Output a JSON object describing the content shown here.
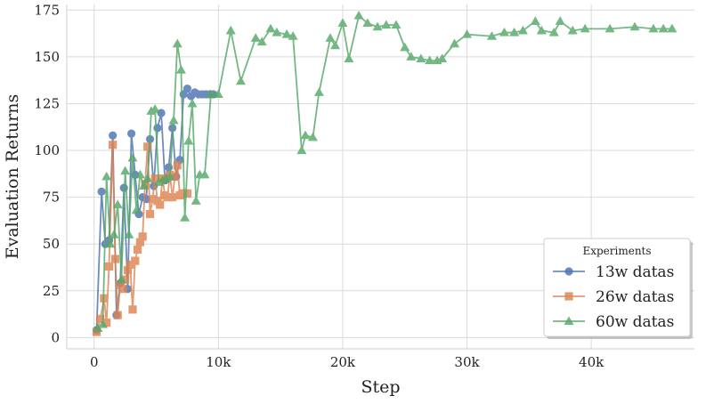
{
  "chart_data": {
    "type": "line",
    "title": "",
    "xlabel": "Step",
    "ylabel": "Evaluation Returns",
    "xlim": [
      -2200,
      48300
    ],
    "ylim": [
      -6,
      178
    ],
    "xticks": [
      0,
      10000,
      20000,
      30000,
      40000
    ],
    "xtick_labels": [
      "0",
      "10k",
      "20k",
      "30k",
      "40k"
    ],
    "yticks": [
      0,
      25,
      50,
      75,
      100,
      125,
      150,
      175
    ],
    "ytick_labels": [
      "0",
      "25",
      "50",
      "75",
      "100",
      "125",
      "150",
      "175"
    ],
    "grid": true,
    "legend": {
      "title": "Experiments",
      "placement": "bottom-right"
    },
    "series": [
      {
        "name": "13w datas",
        "color": "#4c72b0",
        "marker": "circle",
        "x": [
          200,
          600,
          900,
          1200,
          1500,
          1800,
          2100,
          2400,
          2700,
          3000,
          3300,
          3600,
          3900,
          4200,
          4500,
          4800,
          5100,
          5400,
          5700,
          6000,
          6300,
          6600,
          6900,
          7200,
          7500,
          7800,
          8100,
          8400,
          8700,
          9000,
          9300,
          9600
        ],
        "y": [
          4,
          78,
          50,
          52,
          108,
          12,
          29,
          80,
          26,
          109,
          87,
          66,
          75,
          74,
          106,
          81,
          112,
          120,
          84,
          91,
          112,
          86,
          95,
          130,
          133,
          129,
          131,
          130,
          130,
          130,
          130,
          130
        ]
      },
      {
        "name": "26w datas",
        "color": "#dd8452",
        "marker": "square",
        "x": [
          200,
          500,
          800,
          1000,
          1200,
          1500,
          1700,
          1900,
          2100,
          2300,
          2500,
          2700,
          2900,
          3100,
          3300,
          3500,
          3700,
          3900,
          4100,
          4300,
          4500,
          4700,
          4900,
          5100,
          5300,
          5500,
          5700,
          5900,
          6100,
          6300,
          6500,
          6700,
          6900,
          7100,
          7300,
          7500
        ],
        "y": [
          3,
          10,
          21,
          8,
          38,
          103,
          42,
          12,
          28,
          26,
          31,
          36,
          39,
          15,
          41,
          47,
          51,
          54,
          82,
          102,
          66,
          74,
          85,
          73,
          71,
          85,
          76,
          75,
          87,
          75,
          86,
          92,
          76,
          77,
          77,
          77
        ]
      },
      {
        "name": "60w datas",
        "color": "#55a868",
        "marker": "triangle",
        "x": [
          300,
          700,
          1000,
          1300,
          1600,
          1900,
          2200,
          2500,
          2800,
          3100,
          3400,
          3700,
          4000,
          4300,
          4600,
          4900,
          5200,
          5500,
          5800,
          6100,
          6400,
          6700,
          7000,
          7300,
          7600,
          7900,
          8200,
          8500,
          8900,
          9400,
          10000,
          11000,
          11800,
          13000,
          13500,
          14200,
          14700,
          15500,
          16000,
          16700,
          17000,
          17600,
          18100,
          19000,
          19400,
          20000,
          20500,
          21300,
          22000,
          22800,
          23500,
          24300,
          25000,
          25500,
          26300,
          27000,
          27600,
          28000,
          29000,
          30000,
          32000,
          33000,
          33800,
          34500,
          35500,
          36000,
          37000,
          37500,
          38500,
          39500,
          41500,
          43500,
          45000,
          45800,
          46500
        ],
        "y": [
          5,
          7,
          86,
          50,
          55,
          71,
          31,
          89,
          55,
          96,
          68,
          87,
          81,
          85,
          121,
          122,
          83,
          84,
          85,
          86,
          116,
          157,
          143,
          64,
          105,
          125,
          73,
          87,
          87,
          130,
          130,
          164,
          137,
          160,
          158,
          165,
          163,
          162,
          161,
          100,
          108,
          107,
          131,
          160,
          156,
          168,
          149,
          172,
          168,
          166,
          167,
          167,
          155,
          150,
          149,
          148,
          148,
          149,
          157,
          162,
          161,
          163,
          163,
          164,
          169,
          164,
          163,
          169,
          164,
          165,
          165,
          166,
          165,
          165,
          165
        ]
      }
    ]
  }
}
